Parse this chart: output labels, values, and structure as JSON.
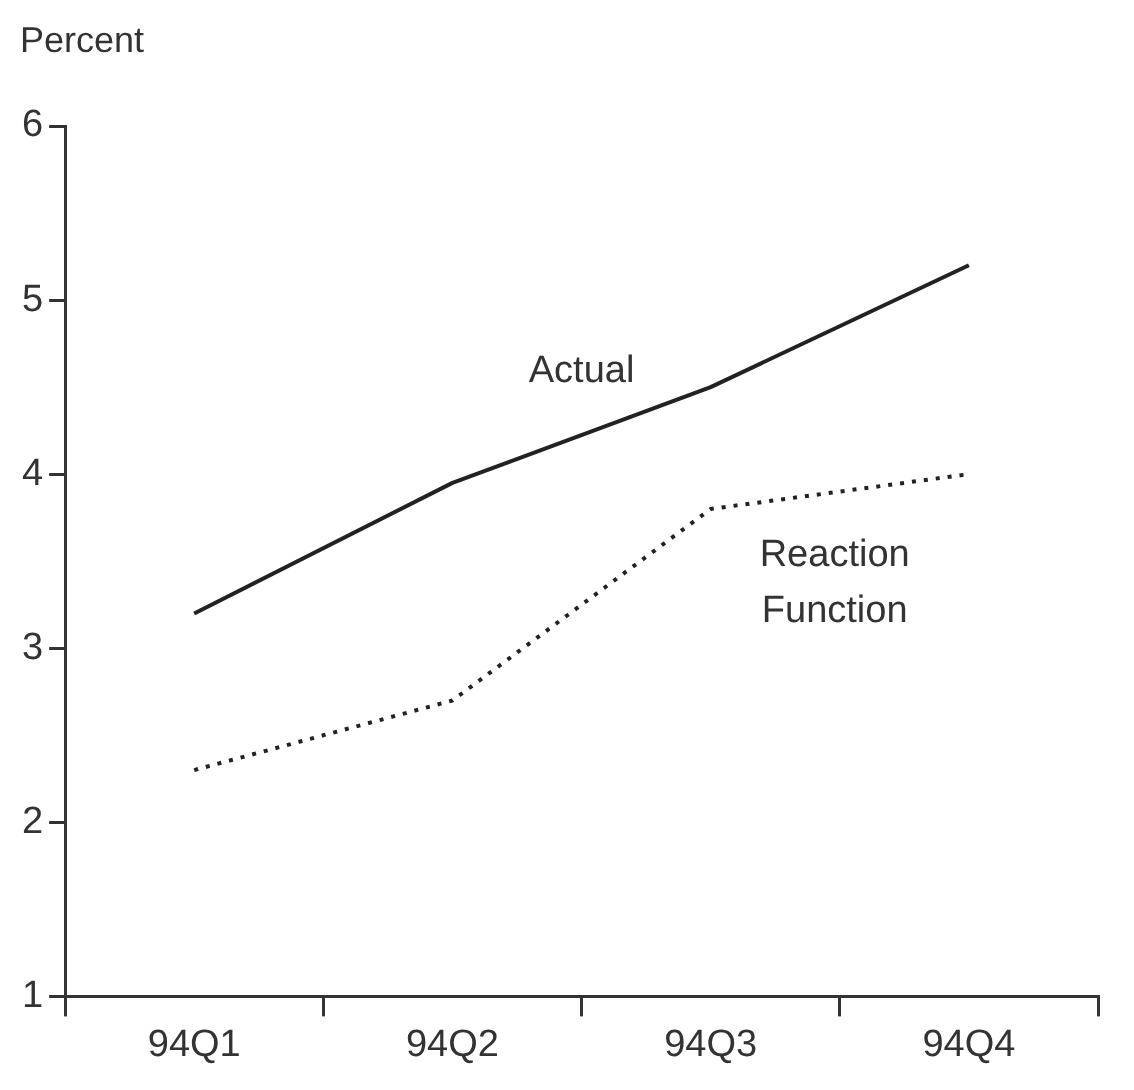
{
  "chart_data": {
    "type": "line",
    "ylabel": "Percent",
    "categories": [
      "94Q1",
      "94Q2",
      "94Q3",
      "94Q4"
    ],
    "series": [
      {
        "name": "Actual",
        "color": "#222222",
        "line_style": "solid",
        "values": [
          3.2,
          3.95,
          4.5,
          5.2
        ]
      },
      {
        "name": "Reaction Function",
        "color": "#222222",
        "line_style": "dotted",
        "values": [
          2.3,
          2.7,
          3.8,
          4.0
        ]
      }
    ],
    "ylim": [
      1,
      6
    ],
    "yticks": [
      1,
      2,
      3,
      4,
      5,
      6
    ],
    "grid": false,
    "legend": false,
    "marker": "none"
  }
}
